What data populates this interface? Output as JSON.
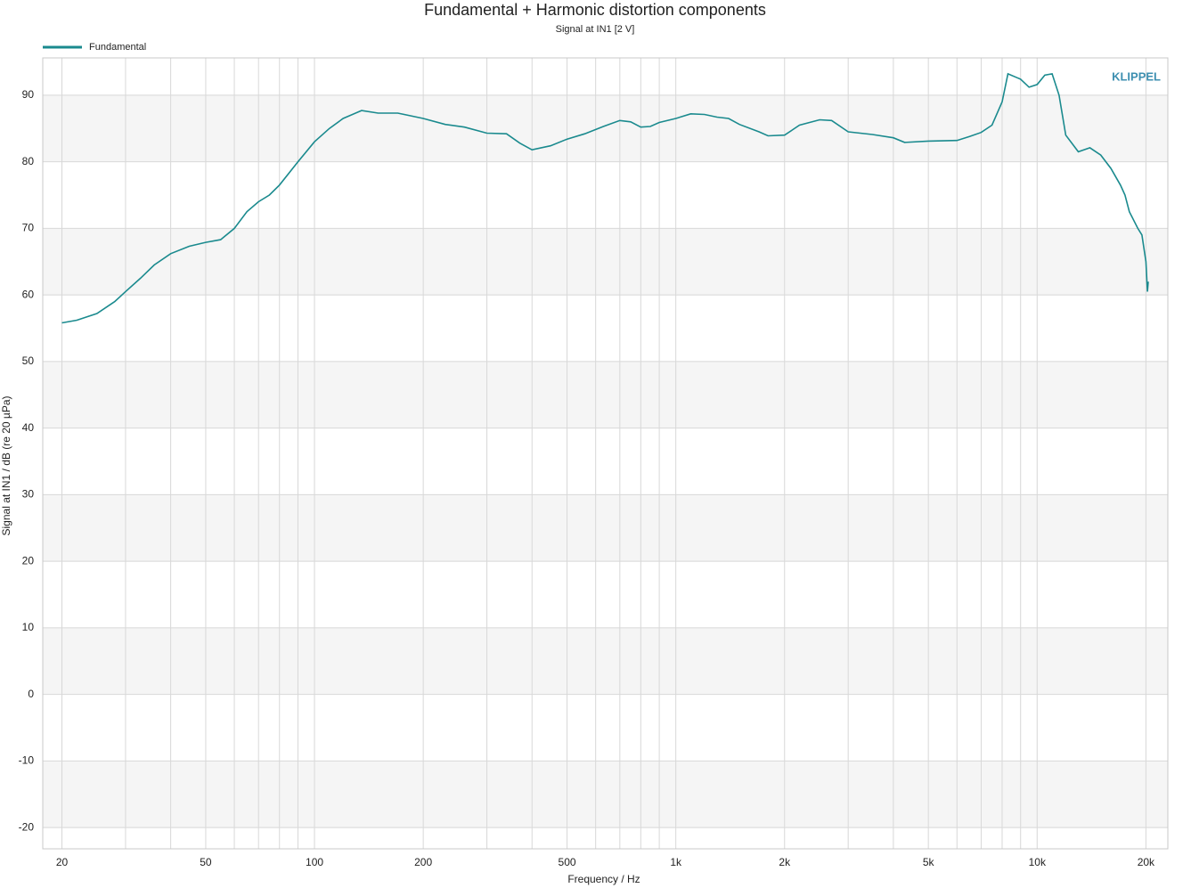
{
  "chart_data": {
    "type": "line",
    "title": "Fundamental + Harmonic distortion components",
    "subtitle": "Signal at IN1 [2 V]",
    "x_label": "Frequency / Hz",
    "y_label": "Signal at IN1 / dB (re 20 µPa)",
    "logo": "KLIPPEL",
    "xscale": "log",
    "grid": true,
    "bands": true,
    "legend": "top-left",
    "xlim": [
      17.7,
      23000
    ],
    "ylim": [
      -23.2,
      95.6
    ],
    "xticks": [
      20,
      50,
      100,
      200,
      500,
      {
        "value": 1000,
        "label": "1k"
      },
      {
        "value": 2000,
        "label": "2k"
      },
      {
        "value": 5000,
        "label": "5k"
      },
      {
        "value": 10000,
        "label": "10k"
      },
      {
        "value": 20000,
        "label": "20k"
      }
    ],
    "x_minor_ticks": [
      30,
      40,
      60,
      70,
      80,
      90,
      300,
      400,
      600,
      700,
      800,
      900,
      3000,
      4000,
      6000,
      7000,
      8000,
      9000
    ],
    "yticks": [
      -20,
      -10,
      0,
      10,
      20,
      30,
      40,
      50,
      60,
      70,
      80,
      90
    ],
    "x": [
      20,
      22,
      25,
      28,
      30,
      33,
      36,
      40,
      45,
      50,
      55,
      60,
      65,
      70,
      75,
      80,
      90,
      100,
      110,
      120,
      135,
      150,
      170,
      200,
      230,
      260,
      300,
      340,
      370,
      400,
      450,
      500,
      560,
      630,
      700,
      750,
      800,
      850,
      900,
      1000,
      1100,
      1200,
      1300,
      1400,
      1500,
      1700,
      1800,
      2000,
      2200,
      2500,
      2700,
      3000,
      3500,
      4000,
      4300,
      5000,
      6000,
      6500,
      7000,
      7500,
      8000,
      8300,
      9000,
      9500,
      10000,
      10500,
      11000,
      11500,
      12000,
      13000,
      14000,
      15000,
      16000,
      17000,
      17500,
      18000,
      19000,
      19500,
      20000,
      20200,
      20300
    ],
    "series": [
      {
        "name": "Fundamental",
        "color": "#1a8a8e",
        "values": [
          55.8,
          56.2,
          57.2,
          59,
          60.5,
          62.5,
          64.5,
          66.2,
          67.3,
          67.9,
          68.3,
          70,
          72.5,
          74,
          75,
          76.5,
          80,
          83,
          85,
          86.5,
          87.7,
          87.3,
          87.3,
          86.5,
          85.6,
          85.2,
          84.3,
          84.2,
          82.8,
          81.8,
          82.4,
          83.4,
          84.2,
          85.3,
          86.2,
          86,
          85.2,
          85.3,
          85.9,
          86.5,
          87.2,
          87.1,
          86.7,
          86.5,
          85.6,
          84.5,
          83.9,
          84,
          85.5,
          86.3,
          86.2,
          84.5,
          84.1,
          83.6,
          82.9,
          83.1,
          83.2,
          83.8,
          84.4,
          85.5,
          89,
          93.2,
          92.4,
          91.2,
          91.6,
          93,
          93.2,
          90,
          84,
          81.5,
          82.1,
          81,
          79,
          76.5,
          75,
          72.5,
          70,
          69,
          65,
          60.5,
          62
        ]
      }
    ]
  }
}
